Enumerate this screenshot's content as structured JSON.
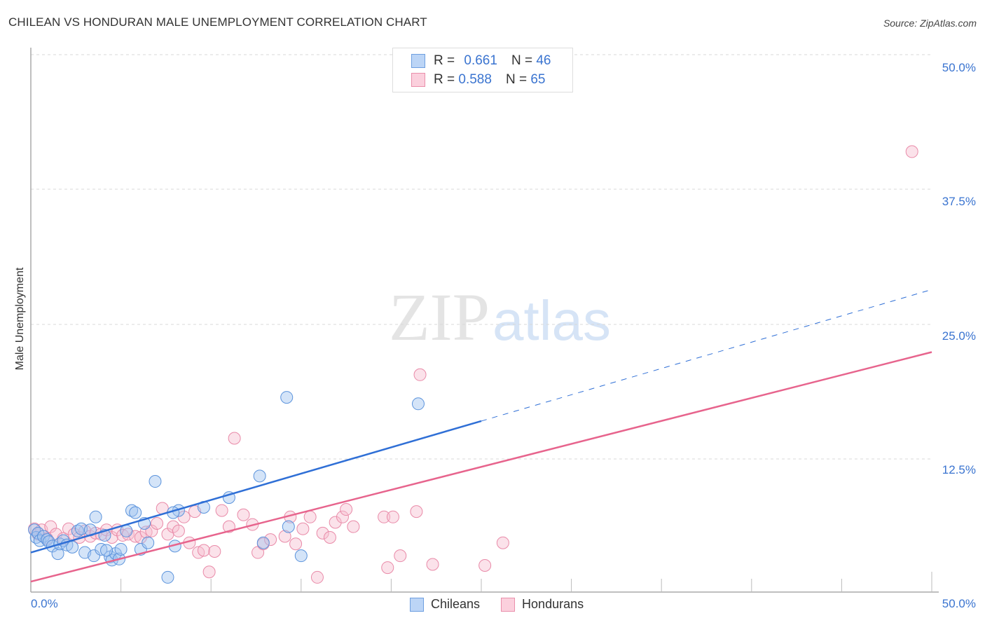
{
  "header": {
    "title": "CHILEAN VS HONDURAN MALE UNEMPLOYMENT CORRELATION CHART",
    "source": "Source: ZipAtlas.com"
  },
  "watermark": {
    "zip": "ZIP",
    "atlas": "atlas"
  },
  "legend": {
    "rows": [
      {
        "r_label": "R =",
        "r_value": "0.661",
        "n_label": "N =",
        "n_value": "46",
        "color": "#a9c9f2",
        "border": "#6e9fe0"
      },
      {
        "r_label": "R =",
        "r_value": "0.588",
        "n_label": "N =",
        "n_value": "65",
        "color": "#f7c4d4",
        "border": "#ea8fab"
      }
    ]
  },
  "bottom_legend": [
    {
      "label": "Chileans",
      "color": "#a9c9f2",
      "border": "#6e9fe0"
    },
    {
      "label": "Hondurans",
      "color": "#f7c4d4",
      "border": "#ea8fab"
    }
  ],
  "axes": {
    "ylabel": "Male Unemployment",
    "yticks": [
      "50.0%",
      "37.5%",
      "25.0%",
      "12.5%"
    ],
    "xticks": [
      "0.0%",
      "50.0%"
    ]
  },
  "colors": {
    "blue_line": "#2f6fd6",
    "pink_line": "#e7648d",
    "blue_fill": "rgba(160,196,240,0.45)",
    "blue_stroke": "#5b93dc",
    "pink_fill": "rgba(247,190,208,0.45)",
    "pink_stroke": "#e98aa8",
    "tick_label": "#3a74d0"
  },
  "chart_data": {
    "type": "scatter",
    "title": "CHILEAN VS HONDURAN MALE UNEMPLOYMENT CORRELATION CHART",
    "xlabel": "",
    "ylabel": "Male Unemployment",
    "xlim": [
      0,
      50
    ],
    "ylim": [
      0,
      50
    ],
    "x_ticks": [
      "0.0%",
      "50.0%"
    ],
    "y_ticks": [
      "12.5%",
      "25.0%",
      "37.5%",
      "50.0%"
    ],
    "grid": "horizontal dashed",
    "legend_position": "top-center",
    "series": [
      {
        "name": "Chileans",
        "R": 0.661,
        "N": 46,
        "trend": {
          "x0": 0,
          "y0": 3.8,
          "x1": 25,
          "y1": 16.0,
          "dashed_to_x": 50,
          "dashed_to_y": 28.2
        },
        "points": [
          [
            0.2,
            5.9
          ],
          [
            0.3,
            5.2
          ],
          [
            0.4,
            5.6
          ],
          [
            0.5,
            4.9
          ],
          [
            0.7,
            5.3
          ],
          [
            0.9,
            5.0
          ],
          [
            1.0,
            4.8
          ],
          [
            1.2,
            4.4
          ],
          [
            1.5,
            3.7
          ],
          [
            1.6,
            4.6
          ],
          [
            1.8,
            4.9
          ],
          [
            2.0,
            4.5
          ],
          [
            2.3,
            4.3
          ],
          [
            2.6,
            5.8
          ],
          [
            2.8,
            6.0
          ],
          [
            3.0,
            3.8
          ],
          [
            3.3,
            5.9
          ],
          [
            3.5,
            3.5
          ],
          [
            3.6,
            7.1
          ],
          [
            3.9,
            4.1
          ],
          [
            4.1,
            5.4
          ],
          [
            4.4,
            3.4
          ],
          [
            4.5,
            3.1
          ],
          [
            4.7,
            3.7
          ],
          [
            4.9,
            3.2
          ],
          [
            5.0,
            4.1
          ],
          [
            5.3,
            5.8
          ],
          [
            5.6,
            7.7
          ],
          [
            5.8,
            7.5
          ],
          [
            6.1,
            4.1
          ],
          [
            6.3,
            6.5
          ],
          [
            6.5,
            4.7
          ],
          [
            6.9,
            10.4
          ],
          [
            7.6,
            1.5
          ],
          [
            8.2,
            7.7
          ],
          [
            9.6,
            8.0
          ],
          [
            8.0,
            4.4
          ],
          [
            11.0,
            8.9
          ],
          [
            12.7,
            10.9
          ],
          [
            12.9,
            4.7
          ],
          [
            15.0,
            3.5
          ],
          [
            14.2,
            18.2
          ],
          [
            14.3,
            6.2
          ],
          [
            21.5,
            17.6
          ],
          [
            7.9,
            7.5
          ],
          [
            4.2,
            4.0
          ]
        ]
      },
      {
        "name": "Hondurans",
        "R": 0.588,
        "N": 65,
        "trend": {
          "x0": 0,
          "y0": 1.1,
          "x1": 50,
          "y1": 22.4
        },
        "points": [
          [
            0.2,
            6.0
          ],
          [
            0.4,
            5.5
          ],
          [
            0.6,
            5.9
          ],
          [
            0.9,
            5.1
          ],
          [
            1.1,
            6.2
          ],
          [
            1.4,
            5.5
          ],
          [
            1.8,
            5.1
          ],
          [
            2.1,
            6.0
          ],
          [
            2.4,
            5.5
          ],
          [
            2.7,
            5.2
          ],
          [
            3.0,
            5.8
          ],
          [
            3.3,
            5.3
          ],
          [
            3.6,
            5.6
          ],
          [
            3.9,
            5.5
          ],
          [
            4.2,
            5.9
          ],
          [
            4.5,
            5.2
          ],
          [
            4.8,
            5.9
          ],
          [
            5.1,
            5.4
          ],
          [
            5.4,
            5.5
          ],
          [
            5.8,
            5.3
          ],
          [
            6.1,
            5.2
          ],
          [
            6.4,
            5.7
          ],
          [
            6.7,
            5.8
          ],
          [
            7.0,
            6.5
          ],
          [
            7.3,
            7.9
          ],
          [
            7.6,
            5.5
          ],
          [
            7.9,
            6.2
          ],
          [
            8.2,
            5.8
          ],
          [
            8.5,
            7.1
          ],
          [
            8.8,
            4.7
          ],
          [
            9.1,
            7.6
          ],
          [
            9.3,
            3.8
          ],
          [
            9.6,
            4.0
          ],
          [
            9.9,
            2.0
          ],
          [
            10.2,
            3.9
          ],
          [
            10.6,
            7.7
          ],
          [
            11.0,
            6.2
          ],
          [
            11.3,
            14.4
          ],
          [
            11.8,
            7.3
          ],
          [
            12.3,
            6.4
          ],
          [
            12.6,
            3.8
          ],
          [
            12.9,
            4.6
          ],
          [
            13.3,
            5.0
          ],
          [
            14.1,
            5.3
          ],
          [
            14.4,
            7.1
          ],
          [
            14.7,
            4.6
          ],
          [
            15.1,
            6.0
          ],
          [
            15.5,
            7.1
          ],
          [
            15.9,
            1.5
          ],
          [
            16.2,
            5.6
          ],
          [
            16.6,
            5.2
          ],
          [
            16.9,
            6.6
          ],
          [
            17.3,
            7.1
          ],
          [
            17.5,
            7.8
          ],
          [
            17.9,
            6.2
          ],
          [
            19.6,
            7.1
          ],
          [
            20.1,
            7.1
          ],
          [
            19.8,
            2.4
          ],
          [
            20.5,
            3.5
          ],
          [
            21.4,
            7.6
          ],
          [
            21.6,
            20.3
          ],
          [
            22.3,
            2.7
          ],
          [
            25.2,
            2.6
          ],
          [
            26.2,
            4.7
          ],
          [
            48.9,
            41.0
          ]
        ]
      }
    ]
  }
}
